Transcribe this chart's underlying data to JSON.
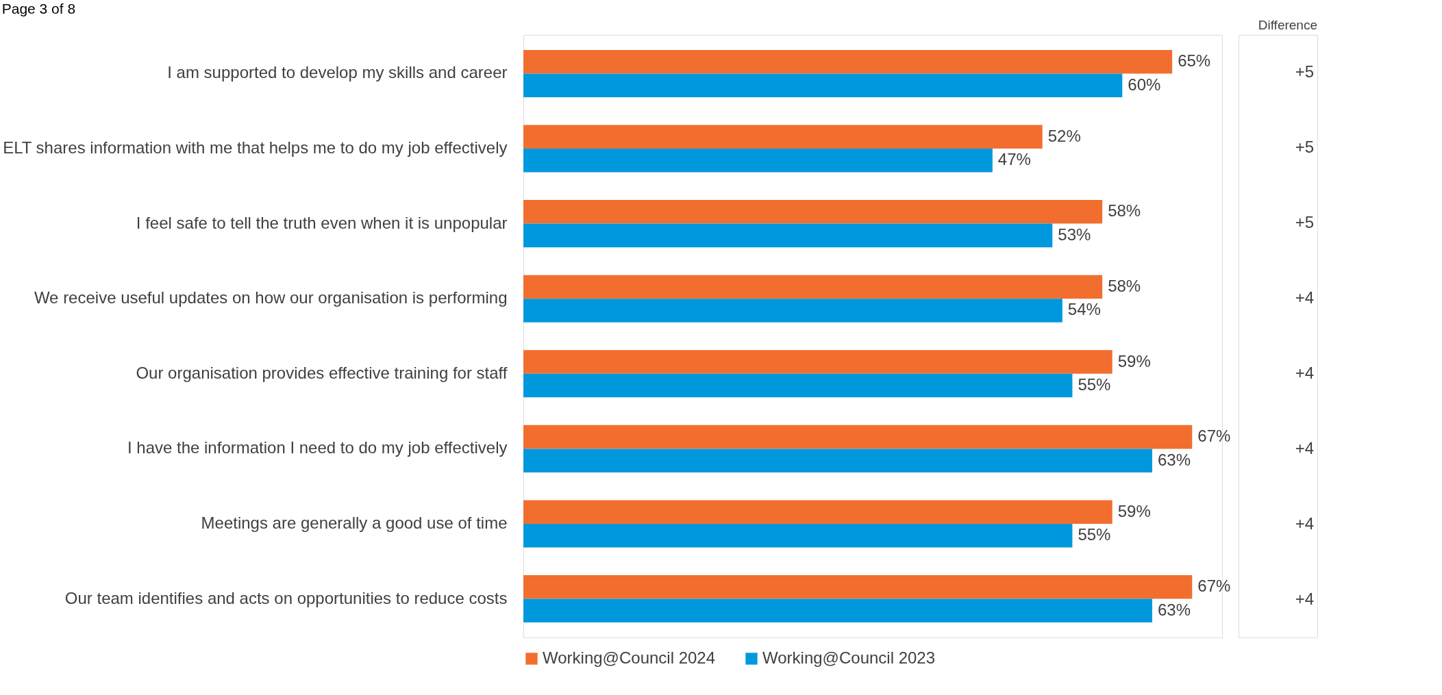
{
  "chart_data": {
    "type": "bar",
    "orientation": "horizontal",
    "categories": [
      "I am supported to develop my skills and career",
      "ELT shares information with me that helps me to do my job effectively",
      "I feel safe to tell the truth even when it is unpopular",
      "We receive useful updates on how our organisation is performing",
      "Our organisation provides effective training for staff",
      "I have the information I need to do my job effectively",
      "Meetings are generally a good use of time",
      "Our team identifies and acts on opportunities to reduce costs"
    ],
    "series": [
      {
        "name": "Working@Council 2024",
        "color": "#f26e2f",
        "values": [
          65,
          52,
          58,
          58,
          59,
          67,
          59,
          67
        ],
        "value_labels": [
          "65%",
          "52%",
          "58%",
          "58%",
          "59%",
          "67%",
          "59%",
          "67%"
        ]
      },
      {
        "name": "Working@Council 2023",
        "color": "#0098dd",
        "values": [
          60,
          47,
          53,
          54,
          55,
          63,
          55,
          63
        ],
        "value_labels": [
          "60%",
          "47%",
          "53%",
          "54%",
          "55%",
          "63%",
          "55%",
          "63%"
        ]
      }
    ],
    "tick_labels": "y",
    "legend": "bottom",
    "annotations": [
      "Page 3 of 8",
      "Difference",
      "+5",
      "+5",
      "+5",
      "+4",
      "+4",
      "+4",
      "+4",
      "+4"
    ]
  }
}
